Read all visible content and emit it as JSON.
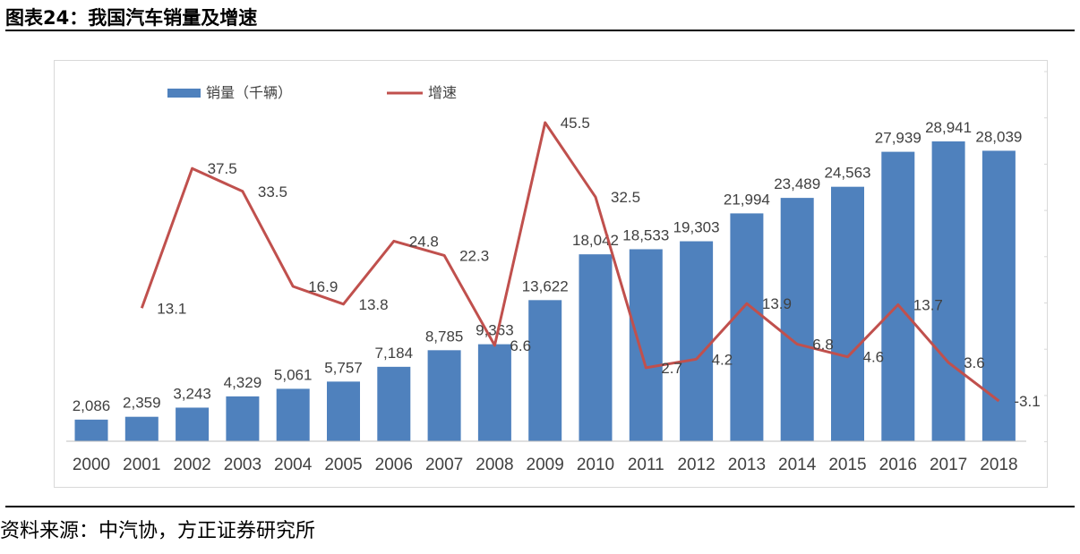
{
  "header": {
    "title": "图表24：我国汽车销量及增速"
  },
  "footer": {
    "source": "资料来源：中汽协，方正证券研究所"
  },
  "colors": {
    "bar": "#4F81BD",
    "line": "#C0504D"
  },
  "chart_data": {
    "type": "bar",
    "title": "图表24：我国汽车销量及增速",
    "categories": [
      "2000",
      "2001",
      "2002",
      "2003",
      "2004",
      "2005",
      "2006",
      "2007",
      "2008",
      "2009",
      "2010",
      "2011",
      "2012",
      "2013",
      "2014",
      "2015",
      "2016",
      "2017",
      "2018"
    ],
    "series": [
      {
        "name": "销量（千辆）",
        "kind": "bar",
        "values": [
          2086,
          2359,
          3243,
          4329,
          5061,
          5757,
          7184,
          8785,
          9363,
          13622,
          18042,
          18533,
          19303,
          21994,
          23489,
          24563,
          27939,
          28941,
          28039
        ],
        "labels": [
          "2,086",
          "2,359",
          "3,243",
          "4,329",
          "5,061",
          "5,757",
          "7,184",
          "8,785",
          "9,363",
          "13,622",
          "18,042",
          "18,533",
          "19,303",
          "21,994",
          "23,489",
          "24,563",
          "27,939",
          "28,941",
          "28,039"
        ]
      },
      {
        "name": "增速",
        "kind": "line",
        "values": [
          null,
          13.1,
          37.5,
          33.5,
          16.9,
          13.8,
          24.8,
          22.3,
          6.6,
          45.5,
          32.5,
          2.7,
          4.2,
          13.9,
          6.8,
          4.6,
          13.7,
          3.6,
          -3.1
        ],
        "labels": [
          "",
          "13.1",
          "37.5",
          "33.5",
          "16.9",
          "13.8",
          "24.8",
          "22.3",
          "6.6",
          "45.5",
          "32.5",
          "2.7",
          "4.2",
          "13.9",
          "6.8",
          "4.6",
          "13.7",
          "3.6",
          "-3.1"
        ]
      }
    ],
    "xlabel": "",
    "ylabel": "",
    "ylim_left": [
      0,
      35000
    ],
    "ylim_right": [
      -10,
      50
    ],
    "legend": "top-left"
  }
}
